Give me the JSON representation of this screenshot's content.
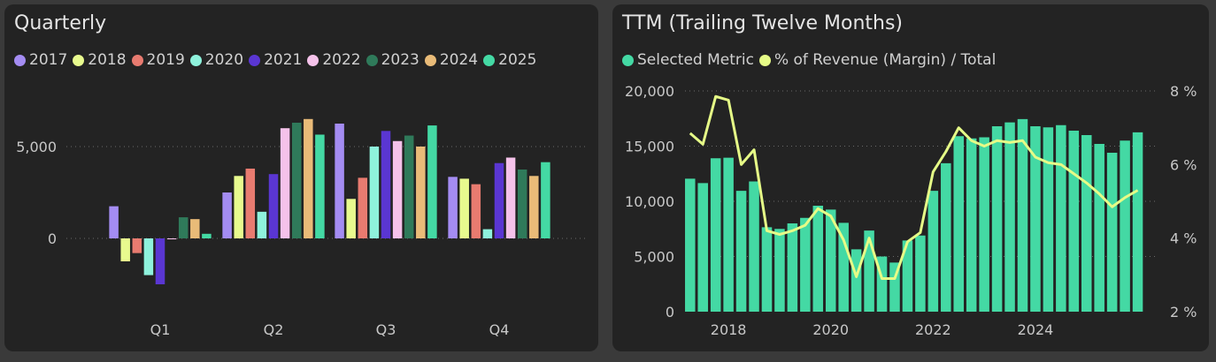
{
  "quarterly": {
    "title": "Quarterly",
    "chart_data": {
      "type": "bar",
      "title": "Quarterly",
      "categories": [
        "Q1",
        "Q2",
        "Q3",
        "Q4"
      ],
      "y_ticks": [
        "0",
        "5,000"
      ],
      "y_tick_values": [
        0,
        5000
      ],
      "ylim": [
        -3800,
        8000
      ],
      "series": [
        {
          "name": "2017",
          "color": "#a48cf2",
          "values": [
            1750,
            2500,
            6250,
            3350
          ]
        },
        {
          "name": "2018",
          "color": "#e8fa8e",
          "values": [
            -1250,
            3400,
            2150,
            3250
          ]
        },
        {
          "name": "2019",
          "color": "#e87b70",
          "values": [
            -800,
            3800,
            3300,
            2950
          ]
        },
        {
          "name": "2020",
          "color": "#8ef2dc",
          "values": [
            -2000,
            1450,
            5000,
            500
          ]
        },
        {
          "name": "2021",
          "color": "#5a36d2",
          "values": [
            -2500,
            3500,
            5850,
            4100
          ]
        },
        {
          "name": "2022",
          "color": "#f5c2ea",
          "values": [
            -50,
            6000,
            5300,
            4400
          ]
        },
        {
          "name": "2023",
          "color": "#2f7a5a",
          "values": [
            1150,
            6300,
            5600,
            3750
          ]
        },
        {
          "name": "2024",
          "color": "#e9bb78",
          "values": [
            1050,
            6500,
            5000,
            3400
          ]
        },
        {
          "name": "2025",
          "color": "#44d9a4",
          "values": [
            250,
            5650,
            6150,
            4150
          ]
        }
      ]
    }
  },
  "ttm": {
    "title": "TTM (Trailing Twelve Months)",
    "chart_data": {
      "type": "bar+line",
      "title": "TTM (Trailing Twelve Months)",
      "legend": [
        "Selected Metric",
        "% of Revenue (Margin) / Total"
      ],
      "colors": {
        "bars": "#44d9a4",
        "line": "#e6fb87"
      },
      "y_left_ticks": [
        "0",
        "5,000",
        "10,000",
        "15,000",
        "20,000"
      ],
      "y_left_values": [
        0,
        5000,
        10000,
        15000,
        20000
      ],
      "y_right_ticks": [
        "2 %",
        "4 %",
        "6 %",
        "8 %"
      ],
      "y_right_values": [
        2,
        4,
        6,
        8
      ],
      "x_ticks": [
        "2018",
        "2020",
        "2022",
        "2024"
      ],
      "x_tick_positions": [
        2018,
        2020,
        2022,
        2024
      ],
      "x_start": 2017.25,
      "x_step": 0.25,
      "bar_values": [
        12050,
        11650,
        13900,
        13950,
        10950,
        11800,
        7650,
        7500,
        8000,
        8500,
        9600,
        9250,
        8050,
        5650,
        7350,
        5000,
        4450,
        6450,
        6900,
        10950,
        13450,
        15900,
        15700,
        15800,
        16800,
        17150,
        17450,
        16800,
        16700,
        16900,
        16400,
        16000,
        15200,
        14400,
        15500,
        16250
      ],
      "line_values": [
        6.85,
        6.55,
        7.85,
        7.75,
        6.0,
        6.4,
        4.2,
        4.1,
        4.2,
        4.35,
        4.8,
        4.6,
        3.95,
        2.95,
        4.0,
        2.9,
        2.9,
        3.9,
        4.15,
        5.8,
        6.35,
        7.0,
        6.65,
        6.5,
        6.65,
        6.6,
        6.65,
        6.2,
        6.05,
        6.0,
        5.75,
        5.5,
        5.2,
        4.85,
        5.1,
        5.3
      ]
    }
  }
}
